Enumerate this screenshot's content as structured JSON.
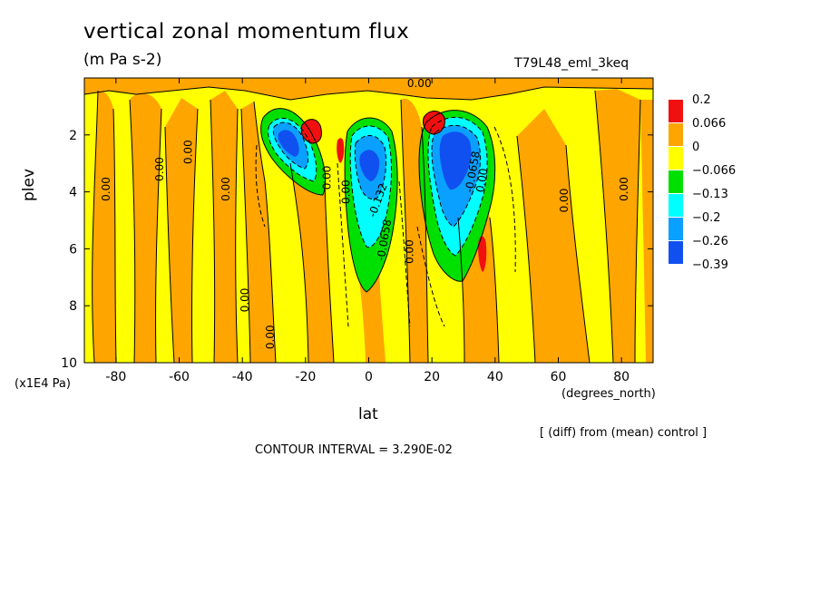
{
  "header": {
    "title": "vertical zonal momentum flux",
    "subtitle": "(m Pa s-2)",
    "run_label": "T79L48_eml_3keq"
  },
  "footer": {
    "y_unit": "(x1E4 Pa)",
    "x_unit": "(degrees_north)",
    "x_axis_title": "lat",
    "note": "[ (diff) from (mean) control ]",
    "contour_interval": "CONTOUR INTERVAL = 3.290E-02"
  },
  "colors": {
    "red": "#f01010",
    "orange": "#ffa500",
    "yellow": "#ffff00",
    "green": "#00e000",
    "cyan": "#00ffff",
    "blue": "#0aa0ff",
    "darkblue": "#1050f0"
  },
  "chart_data": {
    "type": "heatmap",
    "title": "vertical zonal momentum flux",
    "units": "(m Pa s-2)",
    "xlabel": "lat",
    "ylabel": "plev",
    "xlim": [
      -90,
      90
    ],
    "ylim": [
      10,
      0
    ],
    "x_ticks": [
      "-80",
      "-60",
      "-40",
      "-20",
      "0",
      "20",
      "40",
      "60",
      "80"
    ],
    "x_tick_values": [
      -80,
      -60,
      -40,
      -20,
      0,
      20,
      40,
      60,
      80
    ],
    "y_ticks": [
      "2",
      "4",
      "6",
      "8",
      "10"
    ],
    "y_tick_values": [
      2,
      4,
      6,
      8,
      10
    ],
    "legend": [
      {
        "label": "0.2",
        "color": "#f01010"
      },
      {
        "label": "0.066",
        "color": "#ffa500"
      },
      {
        "label": "0",
        "color": "#ffff00"
      },
      {
        "label": "−0.066",
        "color": "#00e000"
      },
      {
        "label": "−0.13",
        "color": "#00ffff"
      },
      {
        "label": "−0.2",
        "color": "#0aa0ff"
      },
      {
        "label": "−0.26",
        "color": "#1050f0"
      },
      {
        "label": "−0.39",
        "color": ""
      }
    ],
    "contour_labels": [
      {
        "text": "0.00",
        "lat": -83,
        "plev": 3.9,
        "rot": -90
      },
      {
        "text": "0.00",
        "lat": -66,
        "plev": 3.2,
        "rot": -90
      },
      {
        "text": "0.00",
        "lat": -57,
        "plev": 2.6,
        "rot": -90
      },
      {
        "text": "0.00",
        "lat": -45,
        "plev": 3.9,
        "rot": -90
      },
      {
        "text": "0.00",
        "lat": -13,
        "plev": 3.5,
        "rot": -90
      },
      {
        "text": "0.00",
        "lat": -39,
        "plev": 7.8,
        "rot": -90
      },
      {
        "text": "0.00",
        "lat": -31,
        "plev": 9.1,
        "rot": -90
      },
      {
        "text": "0.00",
        "lat": -7,
        "plev": 4.0,
        "rot": -90
      },
      {
        "text": "0.00",
        "lat": 13,
        "plev": 6.1,
        "rot": -90
      },
      {
        "text": "0.00",
        "lat": 16,
        "plev": 0.2,
        "rot": 0
      },
      {
        "text": "0.00",
        "lat": 62,
        "plev": 4.3,
        "rot": -90
      },
      {
        "text": "0.00",
        "lat": 81,
        "plev": 3.9,
        "rot": -90
      },
      {
        "text": "0.00",
        "lat": 36,
        "plev": 3.6,
        "rot": -80
      },
      {
        "text": "-0.132",
        "lat": 3,
        "plev": 4.3,
        "rot": -70
      },
      {
        "text": "-0.0658",
        "lat": 5,
        "plev": 5.7,
        "rot": -80
      },
      {
        "text": "-0.0658",
        "lat": 33,
        "plev": 3.3,
        "rot": -80
      }
    ]
  }
}
